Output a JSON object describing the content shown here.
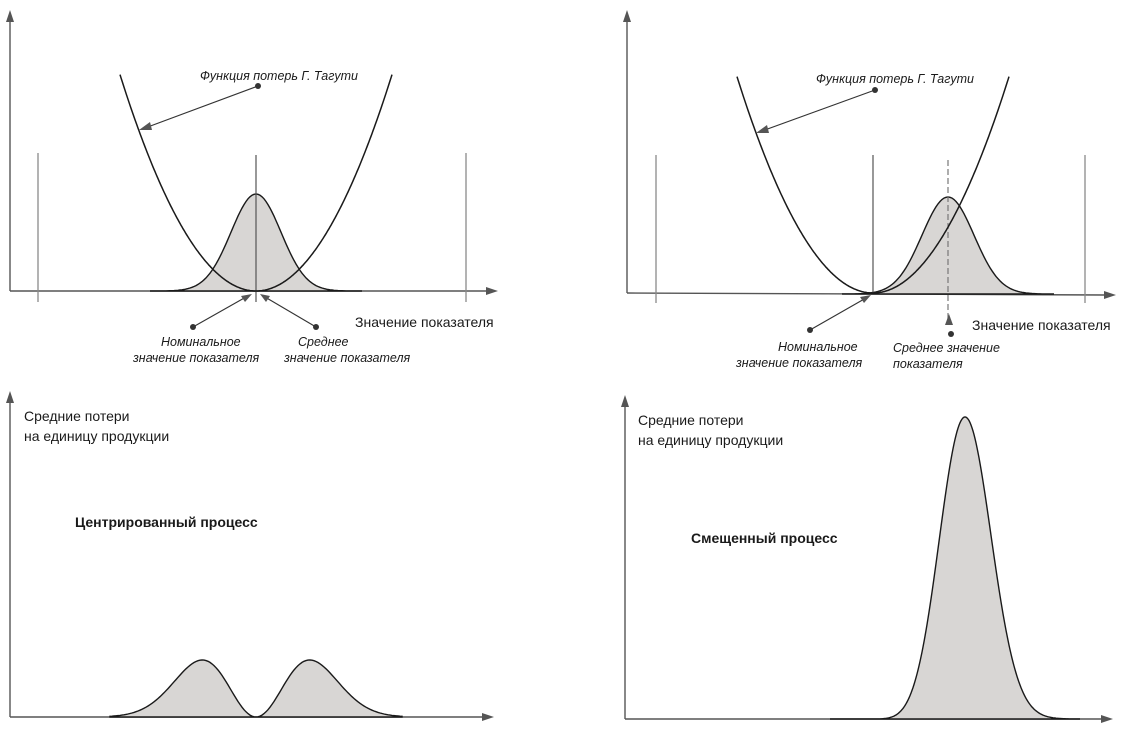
{
  "panels": {
    "top_left": {
      "loss_function_label": "Функция потерь Г. Тагути",
      "x_axis_label": "Значение показателя",
      "nominal_label_line1": "Номинальное",
      "nominal_label_line2": "значение показателя",
      "mean_label_line1": "Среднее",
      "mean_label_line2": "значение показателя"
    },
    "top_right": {
      "loss_function_label": "Функция потерь Г. Тагути",
      "x_axis_label": "Значение показателя",
      "nominal_label_line1": "Номинальное",
      "nominal_label_line2": "значение показателя",
      "mean_label_line1": "Среднее значение",
      "mean_label_line2": "показателя"
    },
    "bottom_left": {
      "y_axis_label_line1": "Средние потери",
      "y_axis_label_line2": "на единицу продукции",
      "process_label": "Центрированный процесс"
    },
    "bottom_right": {
      "y_axis_label_line1": "Средние потери",
      "y_axis_label_line2": "на единицу продукции",
      "process_label": "Смещенный процесс"
    }
  },
  "colors": {
    "distribution_fill": "#d8d6d4",
    "curve": "#1a1a1a",
    "axis": "#555555"
  }
}
